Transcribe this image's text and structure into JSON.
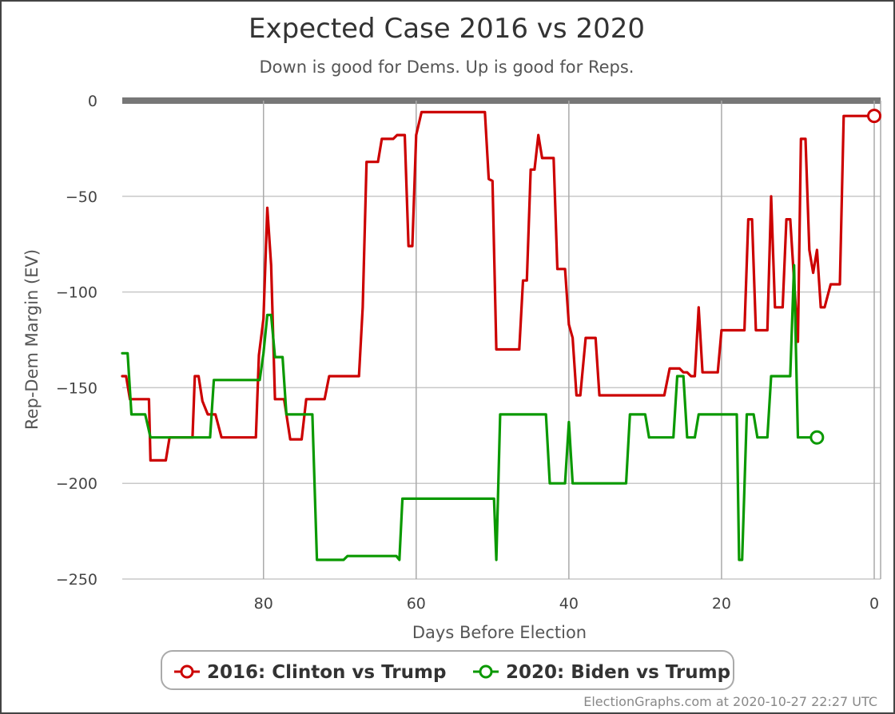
{
  "chart_data": {
    "type": "line",
    "title": "Expected Case 2016 vs 2020",
    "subtitle": "Down is good for Dems. Up is good for Reps.",
    "xlabel": "Days Before Election",
    "ylabel": "Rep-Dem Margin (EV)",
    "x_reversed": true,
    "xlim": [
      0,
      98.5
    ],
    "ylim": [
      -250,
      0
    ],
    "x_ticks": [
      80,
      60,
      40,
      20,
      0
    ],
    "y_ticks": [
      0,
      -50,
      -100,
      -150,
      -200,
      -250
    ],
    "grid": true,
    "legend_position": "bottom",
    "series": [
      {
        "name": "2016: Clinton vs Trump",
        "color": "#cc0000",
        "points": [
          [
            98.5,
            -144
          ],
          [
            98,
            -144
          ],
          [
            97.5,
            -156
          ],
          [
            95,
            -156
          ],
          [
            94.8,
            -188
          ],
          [
            92.8,
            -188
          ],
          [
            92.3,
            -176
          ],
          [
            89.3,
            -176
          ],
          [
            89,
            -144
          ],
          [
            88.5,
            -144
          ],
          [
            88,
            -157
          ],
          [
            87.3,
            -164
          ],
          [
            86.3,
            -164
          ],
          [
            85.5,
            -176
          ],
          [
            81,
            -176
          ],
          [
            80.6,
            -133
          ],
          [
            80,
            -114
          ],
          [
            79.5,
            -56
          ],
          [
            79,
            -86
          ],
          [
            78.5,
            -156
          ],
          [
            77.3,
            -156
          ],
          [
            76.5,
            -177
          ],
          [
            75,
            -177
          ],
          [
            74.4,
            -156
          ],
          [
            72,
            -156
          ],
          [
            71.4,
            -144
          ],
          [
            67.5,
            -144
          ],
          [
            67,
            -108
          ],
          [
            66.5,
            -32
          ],
          [
            65,
            -32
          ],
          [
            64.5,
            -20
          ],
          [
            63,
            -20
          ],
          [
            62.5,
            -18
          ],
          [
            61.5,
            -18
          ],
          [
            61,
            -76
          ],
          [
            60.5,
            -76
          ],
          [
            60,
            -18
          ],
          [
            59.3,
            -6
          ],
          [
            51,
            -6
          ],
          [
            50.5,
            -41
          ],
          [
            50,
            -42
          ],
          [
            49.5,
            -130
          ],
          [
            46.5,
            -130
          ],
          [
            46,
            -94
          ],
          [
            45.5,
            -94
          ],
          [
            45,
            -36
          ],
          [
            44.5,
            -36
          ],
          [
            44,
            -18
          ],
          [
            43.5,
            -30
          ],
          [
            42,
            -30
          ],
          [
            41.5,
            -88
          ],
          [
            40.5,
            -88
          ],
          [
            40,
            -117
          ],
          [
            39.5,
            -124
          ],
          [
            39,
            -154
          ],
          [
            38.5,
            -154
          ],
          [
            37.8,
            -124
          ],
          [
            36.5,
            -124
          ],
          [
            36,
            -154
          ],
          [
            27.5,
            -154
          ],
          [
            26.8,
            -140
          ],
          [
            25.5,
            -140
          ],
          [
            25,
            -142
          ],
          [
            24.5,
            -142
          ],
          [
            24,
            -144
          ],
          [
            23.5,
            -144
          ],
          [
            23,
            -108
          ],
          [
            22.5,
            -142
          ],
          [
            20.5,
            -142
          ],
          [
            20,
            -120
          ],
          [
            17,
            -120
          ],
          [
            16.5,
            -62
          ],
          [
            16,
            -62
          ],
          [
            15.5,
            -120
          ],
          [
            14,
            -120
          ],
          [
            13.5,
            -50
          ],
          [
            13,
            -108
          ],
          [
            12,
            -108
          ],
          [
            11.5,
            -62
          ],
          [
            11,
            -62
          ],
          [
            10.5,
            -94
          ],
          [
            10,
            -126
          ],
          [
            9.6,
            -20
          ],
          [
            9,
            -20
          ],
          [
            8.5,
            -78
          ],
          [
            8,
            -90
          ],
          [
            7.5,
            -78
          ],
          [
            7,
            -108
          ],
          [
            6.5,
            -108
          ],
          [
            5.7,
            -96
          ],
          [
            4.5,
            -96
          ],
          [
            4,
            -8
          ],
          [
            0,
            -8
          ]
        ]
      },
      {
        "name": "2020: Biden vs Trump",
        "color": "#0a9900",
        "points": [
          [
            98.5,
            -132
          ],
          [
            97.8,
            -132
          ],
          [
            97.3,
            -164
          ],
          [
            95.5,
            -164
          ],
          [
            94.8,
            -176
          ],
          [
            87,
            -176
          ],
          [
            86.5,
            -146
          ],
          [
            80.5,
            -146
          ],
          [
            80,
            -132
          ],
          [
            79.5,
            -112
          ],
          [
            79,
            -112
          ],
          [
            78.5,
            -134
          ],
          [
            77.5,
            -134
          ],
          [
            77,
            -164
          ],
          [
            73.6,
            -164
          ],
          [
            73,
            -240
          ],
          [
            69.5,
            -240
          ],
          [
            69,
            -238
          ],
          [
            62.6,
            -238
          ],
          [
            62.2,
            -240
          ],
          [
            61.8,
            -208
          ],
          [
            49.8,
            -208
          ],
          [
            49.5,
            -240
          ],
          [
            49,
            -164
          ],
          [
            43,
            -164
          ],
          [
            42.5,
            -200
          ],
          [
            40.5,
            -200
          ],
          [
            40,
            -168
          ],
          [
            39.5,
            -200
          ],
          [
            32.5,
            -200
          ],
          [
            32,
            -164
          ],
          [
            30,
            -164
          ],
          [
            29.5,
            -176
          ],
          [
            26.3,
            -176
          ],
          [
            25.8,
            -144
          ],
          [
            25,
            -144
          ],
          [
            24.5,
            -176
          ],
          [
            23.5,
            -176
          ],
          [
            23,
            -164
          ],
          [
            18,
            -164
          ],
          [
            17.7,
            -240
          ],
          [
            17.3,
            -240
          ],
          [
            16.7,
            -164
          ],
          [
            15.8,
            -164
          ],
          [
            15.3,
            -176
          ],
          [
            14,
            -176
          ],
          [
            13.5,
            -144
          ],
          [
            11,
            -144
          ],
          [
            10.5,
            -86
          ],
          [
            10,
            -176
          ],
          [
            8.5,
            -176
          ],
          [
            7.5,
            -176
          ]
        ]
      }
    ],
    "end_markers": [
      {
        "series": 0,
        "x": 0,
        "y": -8
      },
      {
        "series": 1,
        "x": 7.5,
        "y": -176
      }
    ],
    "credit": "ElectionGraphs.com at 2020-10-27 22:27 UTC"
  }
}
